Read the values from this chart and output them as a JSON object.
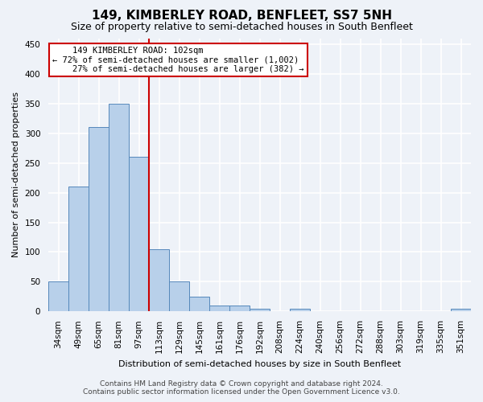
{
  "title": "149, KIMBERLEY ROAD, BENFLEET, SS7 5NH",
  "subtitle": "Size of property relative to semi-detached houses in South Benfleet",
  "xlabel": "Distribution of semi-detached houses by size in South Benfleet",
  "ylabel": "Number of semi-detached properties",
  "bin_labels": [
    "34sqm",
    "49sqm",
    "65sqm",
    "81sqm",
    "97sqm",
    "113sqm",
    "129sqm",
    "145sqm",
    "161sqm",
    "176sqm",
    "192sqm",
    "208sqm",
    "224sqm",
    "240sqm",
    "256sqm",
    "272sqm",
    "288sqm",
    "303sqm",
    "319sqm",
    "335sqm",
    "351sqm"
  ],
  "bar_heights": [
    50,
    210,
    310,
    350,
    260,
    105,
    50,
    25,
    10,
    10,
    5,
    0,
    5,
    0,
    0,
    0,
    0,
    0,
    0,
    0,
    5
  ],
  "bar_color": "#b8d0ea",
  "bar_edge_color": "#5588bb",
  "vline_x": 4.5,
  "vline_color": "#cc0000",
  "annotation_text": "    149 KIMBERLEY ROAD: 102sqm\n← 72% of semi-detached houses are smaller (1,002)\n    27% of semi-detached houses are larger (382) →",
  "annotation_box_color": "#ffffff",
  "annotation_box_edge": "#cc0000",
  "ylim": [
    0,
    460
  ],
  "yticks": [
    0,
    50,
    100,
    150,
    200,
    250,
    300,
    350,
    400,
    450
  ],
  "footer_line1": "Contains HM Land Registry data © Crown copyright and database right 2024.",
  "footer_line2": "Contains public sector information licensed under the Open Government Licence v3.0.",
  "background_color": "#eef2f8",
  "grid_color": "#ffffff",
  "title_fontsize": 11,
  "subtitle_fontsize": 9,
  "axis_label_fontsize": 8,
  "tick_fontsize": 7.5,
  "annotation_fontsize": 7.5,
  "footer_fontsize": 6.5
}
